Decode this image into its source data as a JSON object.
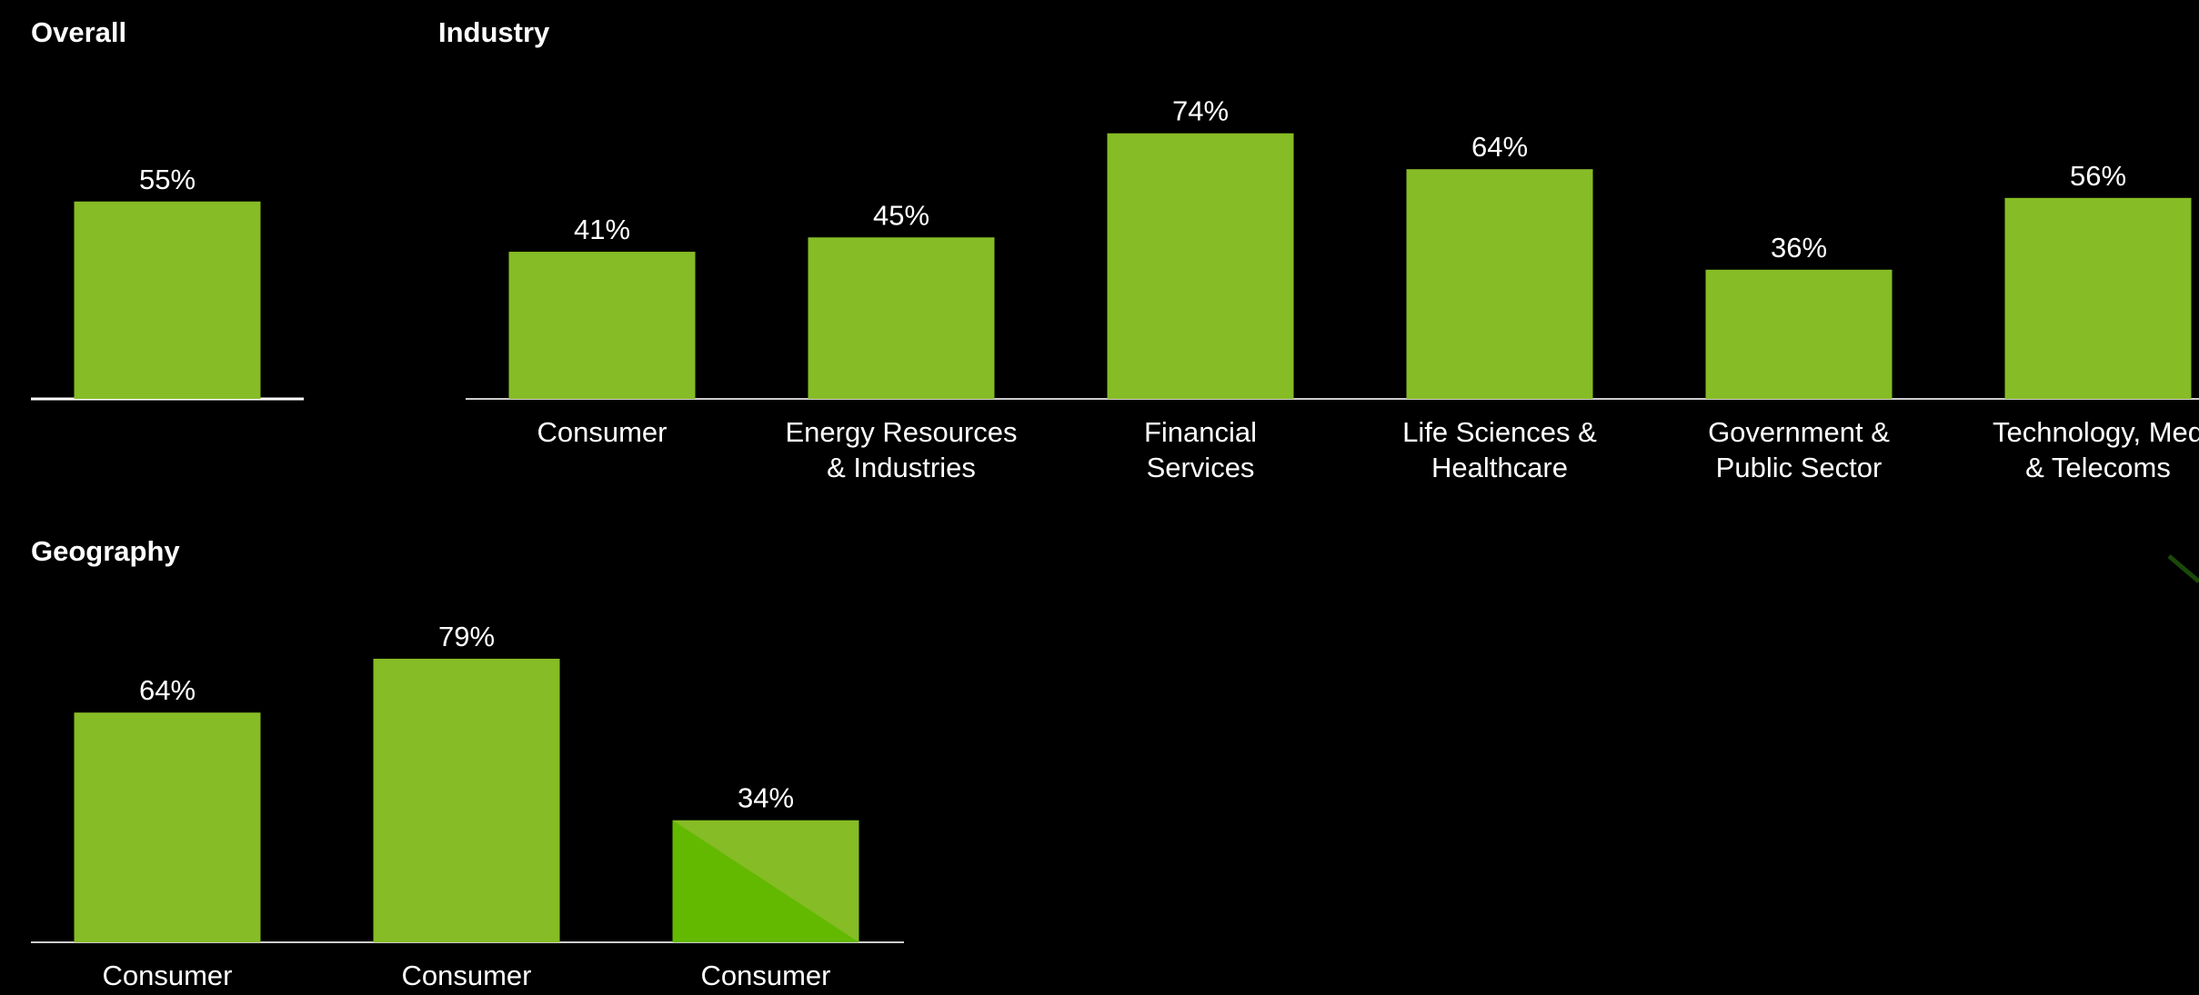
{
  "colors": {
    "background": "#000000",
    "bar": "#86bc25",
    "bar_accent": "#62b900",
    "axis": "#ffffff",
    "text": "#ffffff"
  },
  "chart_data": [
    {
      "type": "bar",
      "title": "Overall",
      "categories": [
        ""
      ],
      "values": [
        55
      ],
      "value_labels": [
        "55%"
      ],
      "ylim": [
        0,
        100
      ],
      "grid": false
    },
    {
      "type": "bar",
      "title": "Industry",
      "categories": [
        [
          "Consumer"
        ],
        [
          "Energy Resources",
          "& Industries"
        ],
        [
          "Financial",
          "Services"
        ],
        [
          "Life Sciences &",
          "Healthcare"
        ],
        [
          "Government &",
          "Public Sector"
        ],
        [
          "Technology, Med",
          "& Telecoms"
        ]
      ],
      "values": [
        41,
        45,
        74,
        64,
        36,
        56
      ],
      "value_labels": [
        "41%",
        "45%",
        "74%",
        "64%",
        "36%",
        "56%"
      ],
      "ylim": [
        0,
        100
      ],
      "grid": false
    },
    {
      "type": "bar",
      "title": "Geography",
      "categories": [
        [
          "Consumer"
        ],
        [
          "Consumer"
        ],
        [
          "Consumer"
        ]
      ],
      "values": [
        64,
        79,
        34
      ],
      "value_labels": [
        "64%",
        "79%",
        "34%"
      ],
      "ylim": [
        0,
        100
      ],
      "grid": false
    }
  ]
}
